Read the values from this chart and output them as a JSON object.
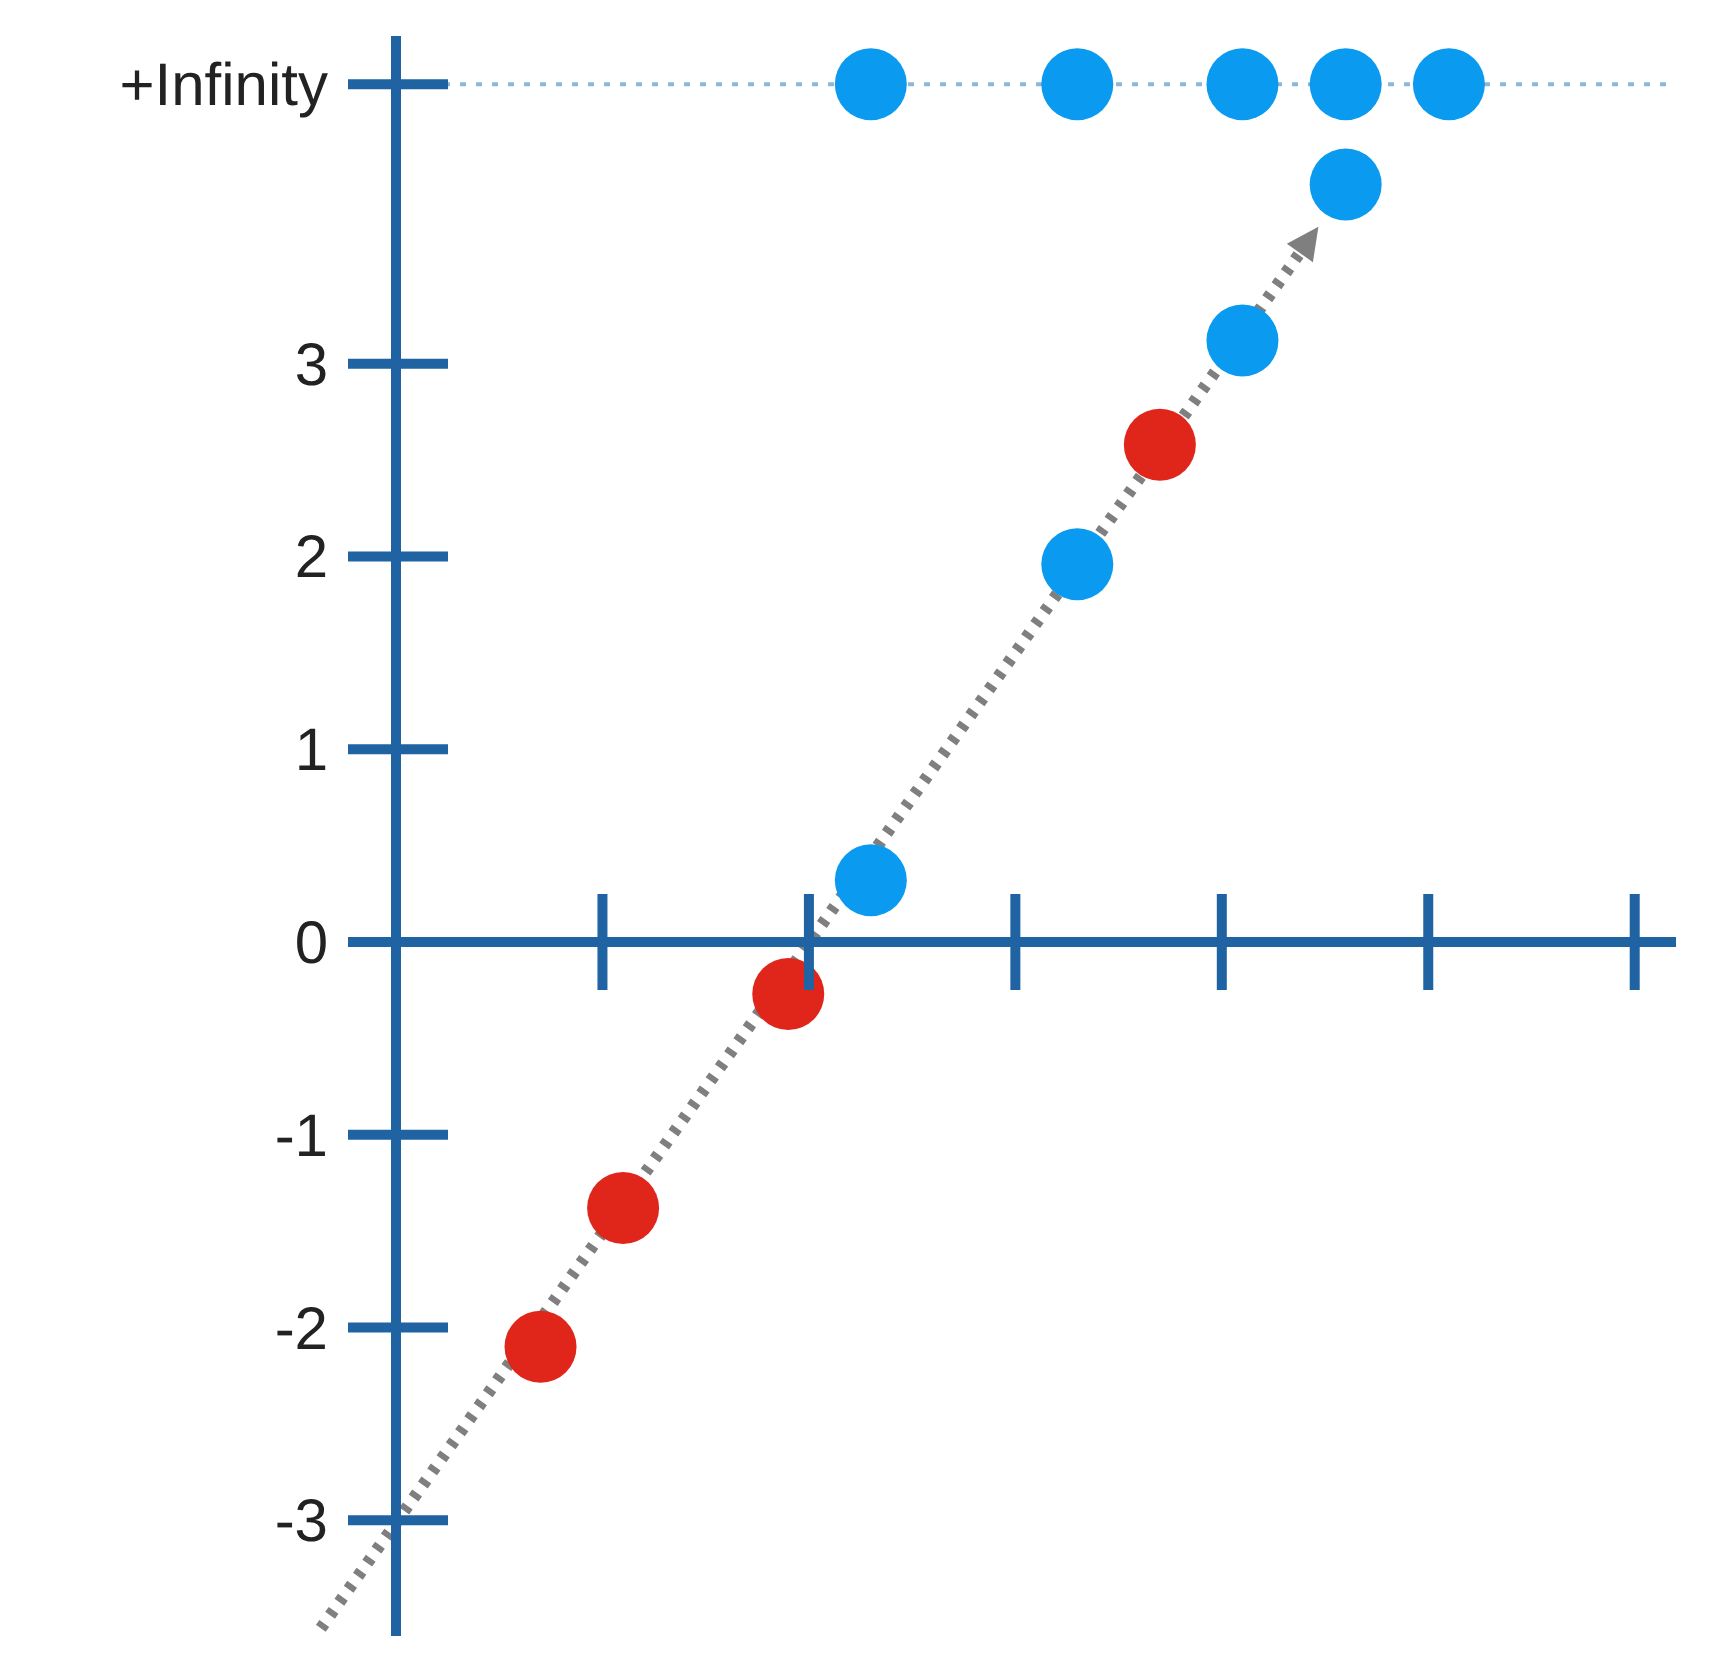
{
  "chart_data": {
    "type": "scatter",
    "marker": "circle",
    "tick_labels": "y",
    "categories": [
      null,
      null,
      null,
      null,
      null,
      null,
      null,
      null,
      null,
      null,
      null,
      null,
      null,
      null,
      null,
      null,
      null,
      null,
      null,
      null,
      null,
      null,
      null,
      null,
      null,
      null,
      null,
      null,
      null,
      null,
      null,
      null,
      null,
      null,
      null,
      null,
      null,
      null,
      null,
      null,
      null,
      null,
      null,
      null,
      null,
      null,
      null,
      null,
      null,
      null,
      null,
      null,
      null,
      null,
      null,
      null,
      null,
      null,
      null,
      null,
      null,
      null,
      null
    ],
    "ylim": [
      -3.6,
      4.7
    ],
    "yticks": [
      -3,
      -2,
      -1,
      0,
      1,
      2,
      3,
      {
        "value": 4.45,
        "label": "+Infinity"
      }
    ],
    "ref_lines": [
      {
        "axis": "y",
        "value": 0,
        "color": "#1f63a3"
      },
      {
        "axis": "y",
        "value": 4.45,
        "color": "#8db6d9",
        "line_style": "dotted"
      }
    ],
    "series": [
      {
        "color": "#e0251b",
        "values": [
          null,
          null,
          null,
          null,
          null,
          null,
          null,
          -2.1,
          null,
          null,
          null,
          -1.38,
          null,
          null,
          null,
          null,
          null,
          null,
          null,
          -0.27,
          null,
          null,
          null,
          null,
          null,
          null,
          null,
          null,
          null,
          null,
          null,
          null,
          null,
          null,
          null,
          null,
          null,
          2.58,
          null,
          null,
          null,
          null,
          null,
          null,
          null,
          null,
          null,
          null,
          null,
          null,
          null,
          null,
          null,
          null,
          null,
          null,
          null,
          null,
          null,
          null,
          null,
          null,
          null
        ]
      },
      {
        "color": "#0a9bf0",
        "values": [
          null,
          null,
          null,
          null,
          null,
          null,
          null,
          null,
          null,
          null,
          null,
          null,
          null,
          null,
          null,
          null,
          null,
          null,
          null,
          null,
          null,
          null,
          null,
          0.32,
          null,
          null,
          null,
          null,
          null,
          null,
          null,
          null,
          null,
          1.96,
          null,
          null,
          null,
          null,
          null,
          null,
          null,
          3.12,
          null,
          null,
          null,
          null,
          3.93,
          null,
          null,
          null,
          null,
          null,
          null,
          null,
          null,
          null,
          null,
          null,
          null,
          null,
          null,
          null,
          null
        ]
      },
      {
        "color": "#0a9bf0",
        "values": [
          null,
          null,
          null,
          null,
          null,
          null,
          null,
          null,
          null,
          null,
          null,
          null,
          null,
          null,
          null,
          null,
          null,
          null,
          null,
          null,
          null,
          null,
          null,
          4.45,
          null,
          null,
          null,
          null,
          null,
          null,
          null,
          null,
          null,
          4.45,
          null,
          null,
          null,
          null,
          null,
          null,
          null,
          4.45,
          null,
          null,
          null,
          null,
          4.45,
          null,
          null,
          null,
          null,
          4.45,
          null,
          null,
          null,
          null,
          null,
          null,
          null,
          null,
          null,
          null,
          null
        ]
      }
    ]
  }
}
